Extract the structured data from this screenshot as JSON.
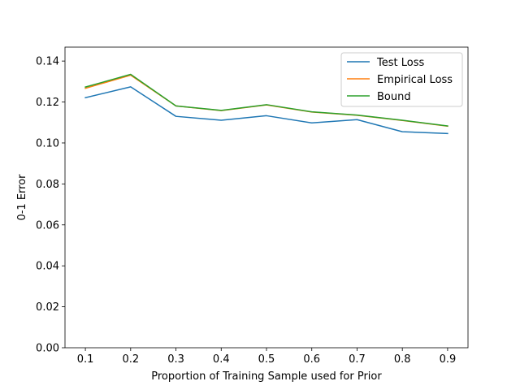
{
  "chart_data": {
    "type": "line",
    "title": "",
    "xlabel": "Proportion of Training Sample used for Prior",
    "ylabel": "0-1 Error",
    "x": [
      0.1,
      0.2,
      0.3,
      0.4,
      0.5,
      0.6,
      0.7,
      0.8,
      0.9
    ],
    "x_ticks": [
      "0.1",
      "0.2",
      "0.3",
      "0.4",
      "0.5",
      "0.6",
      "0.7",
      "0.8",
      "0.9"
    ],
    "y_ticks": [
      "0.00",
      "0.02",
      "0.04",
      "0.06",
      "0.08",
      "0.10",
      "0.12",
      "0.14"
    ],
    "xlim": [
      0.055,
      0.945
    ],
    "ylim": [
      0.0,
      0.1468
    ],
    "grid": false,
    "legend_position": "top-right",
    "series": [
      {
        "name": "Test Loss",
        "color": "#1f77b4",
        "values": [
          0.1221,
          0.1274,
          0.113,
          0.1111,
          0.1133,
          0.1098,
          0.1114,
          0.1055,
          0.1046
        ]
      },
      {
        "name": "Empirical Loss",
        "color": "#ff7f0e",
        "values": [
          0.1267,
          0.1331,
          0.1181,
          0.1158,
          0.1186,
          0.1151,
          0.1135,
          0.111,
          0.1082
        ]
      },
      {
        "name": "Bound",
        "color": "#2ca02c",
        "values": [
          0.1273,
          0.1335,
          0.1181,
          0.1159,
          0.1187,
          0.1152,
          0.1136,
          0.1111,
          0.1083
        ]
      }
    ]
  }
}
